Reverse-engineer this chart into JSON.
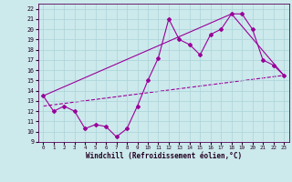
{
  "xlabel": "Windchill (Refroidissement éolien,°C)",
  "xlim": [
    -0.5,
    23.5
  ],
  "ylim": [
    9,
    22.5
  ],
  "xticks": [
    0,
    1,
    2,
    3,
    4,
    5,
    6,
    7,
    8,
    9,
    10,
    11,
    12,
    13,
    14,
    15,
    16,
    17,
    18,
    19,
    20,
    21,
    22,
    23
  ],
  "yticks": [
    9,
    10,
    11,
    12,
    13,
    14,
    15,
    16,
    17,
    18,
    19,
    20,
    21,
    22
  ],
  "background_color": "#cce9ec",
  "grid_color": "#aad4d8",
  "line_color": "#990099",
  "line1_x": [
    0,
    1,
    2,
    3,
    4,
    5,
    6,
    7,
    8,
    9,
    10,
    11,
    12,
    13,
    14,
    15,
    16,
    17,
    18,
    19,
    20,
    21,
    22,
    23
  ],
  "line1_y": [
    13.5,
    12.0,
    12.5,
    12.0,
    10.3,
    10.7,
    10.5,
    9.5,
    10.3,
    12.5,
    15.0,
    17.2,
    21.0,
    19.0,
    18.5,
    17.5,
    19.5,
    20.0,
    21.5,
    21.5,
    20.0,
    17.0,
    16.5,
    15.5
  ],
  "line2_x": [
    0,
    18,
    23
  ],
  "line2_y": [
    13.5,
    21.5,
    15.5
  ],
  "line3_x": [
    0,
    23
  ],
  "line3_y": [
    12.5,
    15.5
  ]
}
